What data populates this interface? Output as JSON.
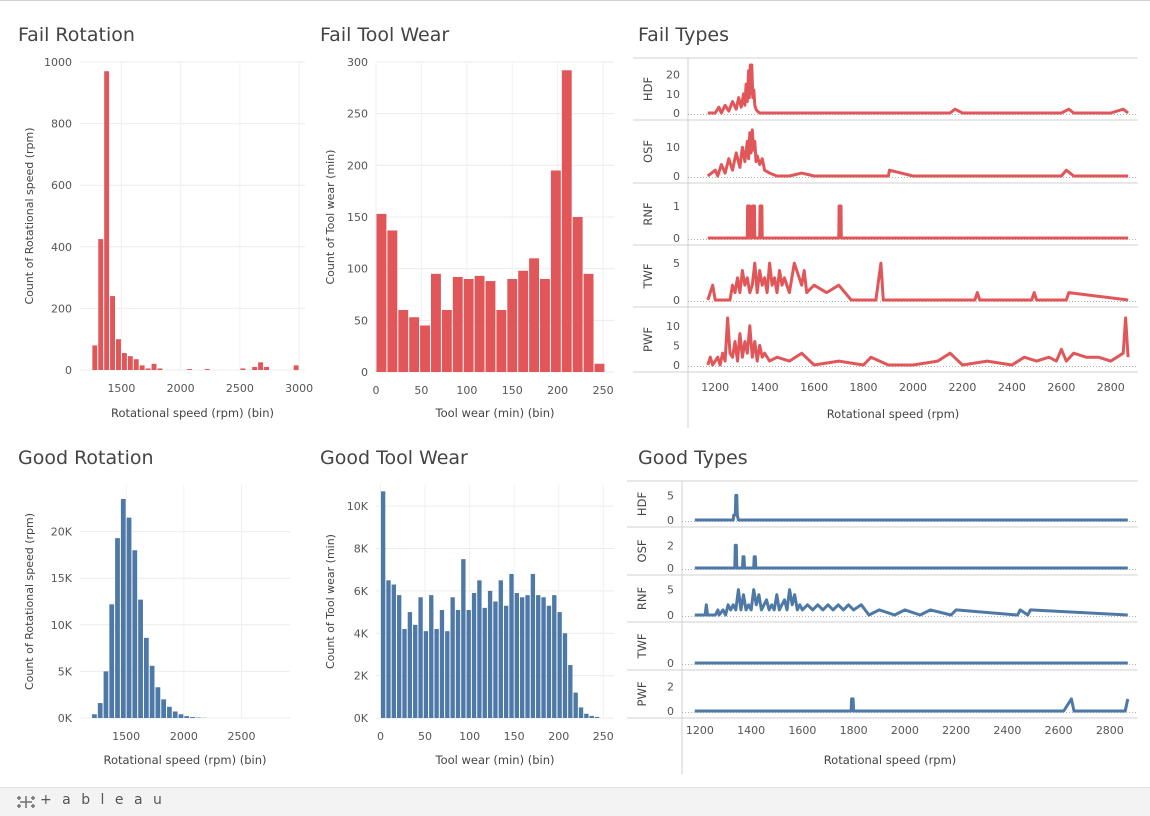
{
  "titles": {
    "fail_rotation": "Fail Rotation",
    "fail_tool_wear": "Fail Tool Wear",
    "fail_types": "Fail Types",
    "good_rotation": "Good Rotation",
    "good_tool_wear": "Good Tool Wear",
    "good_types": "Good Types"
  },
  "footer": {
    "brand": "+ a b l e a u",
    "icon": "tableau-logo-icon"
  },
  "colors": {
    "fail": "#e15759",
    "good": "#4e79a7"
  },
  "chart_data": [
    {
      "id": "fail_rotation",
      "type": "bar",
      "title": "Fail Rotation",
      "xlabel": "Rotational speed (rpm) (bin)",
      "ylabel": "Count of Rotational speed (rpm)",
      "xlim": [
        1150,
        3050
      ],
      "ylim": [
        0,
        1000
      ],
      "xticks": [
        1500,
        2000,
        2500,
        3000
      ],
      "yticks": [
        0,
        200,
        400,
        600,
        800,
        1000
      ],
      "bin_width": 50,
      "bins": [
        1250,
        1300,
        1350,
        1400,
        1450,
        1500,
        1550,
        1600,
        1650,
        1700,
        1750,
        1800,
        2050,
        2200,
        2500,
        2600,
        2650,
        2700,
        2950
      ],
      "values": [
        80,
        425,
        970,
        240,
        100,
        55,
        45,
        35,
        15,
        5,
        20,
        5,
        3,
        3,
        5,
        10,
        25,
        10,
        15
      ]
    },
    {
      "id": "fail_tool_wear",
      "type": "bar",
      "title": "Fail Tool Wear",
      "xlabel": "Tool wear (min) (bin)",
      "ylabel": "Count of Tool wear (min)",
      "xlim": [
        0,
        262
      ],
      "ylim": [
        0,
        300
      ],
      "xticks": [
        0,
        50,
        100,
        150,
        200,
        250
      ],
      "yticks": [
        0,
        50,
        100,
        150,
        200,
        250,
        300
      ],
      "bin_width": 12,
      "bins": [
        0,
        12,
        24,
        36,
        48,
        60,
        72,
        84,
        96,
        108,
        120,
        132,
        144,
        156,
        168,
        180,
        192,
        204,
        216,
        228,
        240
      ],
      "values": [
        153,
        137,
        60,
        53,
        45,
        95,
        60,
        92,
        90,
        93,
        88,
        60,
        90,
        98,
        110,
        90,
        195,
        292,
        150,
        95,
        8
      ]
    },
    {
      "id": "fail_types",
      "type": "line",
      "title": "Fail Types",
      "xlabel": "Rotational speed (rpm)",
      "xlim": [
        1090,
        2910
      ],
      "xticks": [
        1200,
        1400,
        1600,
        1800,
        2000,
        2200,
        2400,
        2600,
        2800
      ],
      "series": [
        {
          "name": "HDF",
          "yticks": [
            0,
            10,
            20
          ],
          "ymax": 25,
          "x": [
            1170,
            1200,
            1215,
            1225,
            1240,
            1255,
            1270,
            1285,
            1295,
            1305,
            1315,
            1320,
            1325,
            1330,
            1335,
            1338,
            1342,
            1345,
            1348,
            1352,
            1356,
            1360,
            1365,
            1370,
            1380,
            1400,
            1500,
            1600,
            1700,
            1800,
            1900,
            2000,
            2150,
            2170,
            2200,
            2300,
            2400,
            2580,
            2600,
            2630,
            2650,
            2700,
            2800,
            2850,
            2870
          ],
          "y": [
            0,
            0,
            3,
            0,
            4,
            1,
            6,
            2,
            8,
            3,
            10,
            4,
            15,
            6,
            22,
            8,
            25,
            10,
            25,
            8,
            12,
            4,
            2,
            1,
            0,
            0,
            0,
            0,
            0,
            0,
            0,
            0,
            0,
            2,
            0,
            0,
            0,
            0,
            0,
            2,
            0,
            0,
            0,
            2,
            0
          ]
        },
        {
          "name": "OSF",
          "yticks": [
            0,
            10
          ],
          "ymax": 17,
          "x": [
            1170,
            1200,
            1210,
            1225,
            1240,
            1255,
            1270,
            1285,
            1300,
            1310,
            1320,
            1330,
            1335,
            1340,
            1345,
            1350,
            1355,
            1360,
            1365,
            1370,
            1380,
            1390,
            1400,
            1420,
            1450,
            1500,
            1550,
            1600,
            1800,
            1900,
            1905,
            2000,
            2200,
            2400,
            2600,
            2620,
            2650,
            2700,
            2870
          ],
          "y": [
            0,
            2,
            0,
            4,
            1,
            6,
            2,
            8,
            3,
            10,
            5,
            12,
            6,
            15,
            8,
            16,
            9,
            12,
            5,
            7,
            4,
            6,
            2,
            1,
            0,
            0,
            1,
            0,
            0,
            0,
            2,
            0,
            0,
            0,
            0,
            2,
            0,
            0,
            0
          ]
        },
        {
          "name": "RNF",
          "yticks": [
            0,
            1
          ],
          "ymax": 1.5,
          "x": [
            1170,
            1330,
            1331,
            1339,
            1340,
            1350,
            1351,
            1359,
            1360,
            1380,
            1381,
            1389,
            1390,
            1700,
            1701,
            1709,
            1710,
            2870
          ],
          "y": [
            0,
            0,
            1,
            1,
            0,
            0,
            1,
            1,
            0,
            0,
            1,
            1,
            0,
            0,
            1,
            1,
            0,
            0
          ]
        },
        {
          "name": "TWF",
          "yticks": [
            0,
            5
          ],
          "ymax": 6.5,
          "x": [
            1170,
            1190,
            1200,
            1260,
            1270,
            1280,
            1290,
            1300,
            1310,
            1320,
            1330,
            1340,
            1350,
            1360,
            1370,
            1380,
            1390,
            1400,
            1410,
            1420,
            1430,
            1440,
            1450,
            1460,
            1470,
            1480,
            1500,
            1520,
            1550,
            1560,
            1570,
            1600,
            1650,
            1700,
            1750,
            1850,
            1870,
            1880,
            1900,
            2000,
            2250,
            2260,
            2270,
            2480,
            2490,
            2500,
            2620,
            2630,
            2870
          ],
          "y": [
            0,
            2,
            0,
            0,
            2,
            1,
            3,
            1,
            4,
            2,
            3,
            1,
            2,
            5,
            1,
            4,
            2,
            3,
            1,
            5,
            2,
            3,
            1,
            4,
            2,
            3,
            1,
            5,
            2,
            4,
            1,
            2,
            1,
            2,
            0,
            0,
            5,
            0,
            0,
            0,
            0,
            1,
            0,
            0,
            1,
            0,
            0,
            1,
            0
          ]
        },
        {
          "name": "PWF",
          "yticks": [
            0,
            5,
            10
          ],
          "ymax": 13,
          "x": [
            1170,
            1180,
            1190,
            1200,
            1210,
            1220,
            1230,
            1240,
            1250,
            1260,
            1270,
            1280,
            1290,
            1300,
            1310,
            1320,
            1330,
            1340,
            1350,
            1360,
            1370,
            1380,
            1390,
            1400,
            1420,
            1450,
            1500,
            1550,
            1600,
            1700,
            1800,
            1830,
            1900,
            2000,
            2100,
            2150,
            2200,
            2300,
            2400,
            2450,
            2500,
            2550,
            2580,
            2600,
            2620,
            2650,
            2700,
            2750,
            2800,
            2850,
            2860,
            2870
          ],
          "y": [
            0,
            2,
            0,
            1,
            2,
            0,
            3,
            1,
            12,
            3,
            2,
            6,
            1,
            8,
            2,
            6,
            3,
            10,
            2,
            6,
            1,
            5,
            2,
            3,
            1,
            2,
            1,
            3,
            0,
            1,
            0,
            2,
            0,
            0,
            1,
            3,
            0,
            1,
            0,
            2,
            1,
            2,
            1,
            4,
            1,
            3,
            2,
            2,
            1,
            3,
            12,
            2
          ]
        }
      ]
    },
    {
      "id": "good_rotation",
      "type": "bar",
      "title": "Good Rotation",
      "xlabel": "Rotational speed (rpm) (bin)",
      "ylabel": "Count of Rotational speed (rpm)",
      "xlim": [
        1100,
        2920
      ],
      "ylim": [
        0,
        25000
      ],
      "xticks": [
        1500,
        2000,
        2500
      ],
      "yticks": [
        0,
        5000,
        10000,
        15000,
        20000
      ],
      "ytick_labels": [
        "0K",
        "5K",
        "10K",
        "15K",
        "20K"
      ],
      "bin_width": 50,
      "bins": [
        1200,
        1250,
        1300,
        1350,
        1400,
        1450,
        1500,
        1550,
        1600,
        1650,
        1700,
        1750,
        1800,
        1850,
        1900,
        1950,
        2000,
        2050,
        2100,
        2150
      ],
      "values": [
        400,
        1600,
        5000,
        12200,
        19300,
        23500,
        21500,
        18000,
        12700,
        8600,
        5600,
        3300,
        2000,
        1200,
        700,
        400,
        200,
        100,
        50,
        20
      ]
    },
    {
      "id": "good_tool_wear",
      "type": "bar",
      "title": "Good Tool Wear",
      "xlabel": "Tool wear (min) (bin)",
      "ylabel": "Count of Tool wear (min)",
      "xlim": [
        -5,
        262
      ],
      "ylim": [
        0,
        11000
      ],
      "xticks": [
        0,
        50,
        100,
        150,
        200,
        250
      ],
      "yticks": [
        0,
        2000,
        4000,
        6000,
        8000,
        10000
      ],
      "ytick_labels": [
        "0K",
        "2K",
        "4K",
        "6K",
        "8K",
        "10K"
      ],
      "bin_width": 6,
      "bins": [
        0,
        6,
        12,
        18,
        24,
        30,
        36,
        42,
        48,
        54,
        60,
        66,
        72,
        78,
        84,
        90,
        96,
        102,
        108,
        114,
        120,
        126,
        132,
        138,
        144,
        150,
        156,
        162,
        168,
        174,
        180,
        186,
        192,
        198,
        204,
        210,
        216,
        222,
        228,
        234,
        240
      ],
      "values": [
        10700,
        6500,
        6300,
        5800,
        4200,
        5000,
        4400,
        5700,
        4100,
        5800,
        4200,
        5100,
        4100,
        5700,
        5100,
        7500,
        5100,
        5900,
        6500,
        5200,
        6000,
        5500,
        6500,
        5300,
        6800,
        5900,
        5700,
        5800,
        6800,
        5800,
        5700,
        5300,
        5800,
        5000,
        4000,
        2500,
        1200,
        500,
        200,
        100,
        50
      ]
    },
    {
      "id": "good_types",
      "type": "line",
      "title": "Good Types",
      "xlabel": "Rotational speed (rpm)",
      "xlim": [
        1130,
        2910
      ],
      "xticks": [
        1200,
        1400,
        1600,
        1800,
        2000,
        2200,
        2400,
        2600,
        2800
      ],
      "series": [
        {
          "name": "HDF",
          "yticks": [
            0,
            5
          ],
          "ymax": 6.5,
          "x": [
            1180,
            1330,
            1332,
            1338,
            1340,
            1344,
            1346,
            1350,
            2870
          ],
          "y": [
            0,
            0,
            1,
            1,
            5,
            5,
            1,
            0,
            0
          ]
        },
        {
          "name": "OSF",
          "yticks": [
            0,
            2
          ],
          "ymax": 3,
          "x": [
            1180,
            1336,
            1338,
            1342,
            1344,
            1366,
            1368,
            1372,
            1374,
            1410,
            1412,
            1416,
            1418,
            2870
          ],
          "y": [
            0,
            0,
            2,
            2,
            0,
            0,
            1,
            1,
            0,
            0,
            1,
            1,
            0,
            0
          ]
        },
        {
          "name": "RNF",
          "yticks": [
            0,
            5
          ],
          "ymax": 6.5,
          "x": [
            1180,
            1220,
            1225,
            1230,
            1260,
            1270,
            1275,
            1290,
            1300,
            1310,
            1320,
            1330,
            1340,
            1350,
            1360,
            1370,
            1380,
            1390,
            1400,
            1410,
            1420,
            1430,
            1440,
            1450,
            1460,
            1470,
            1480,
            1490,
            1500,
            1510,
            1520,
            1530,
            1540,
            1550,
            1560,
            1570,
            1580,
            1590,
            1600,
            1620,
            1640,
            1660,
            1680,
            1700,
            1720,
            1740,
            1760,
            1780,
            1800,
            1830,
            1860,
            1900,
            1960,
            2000,
            2060,
            2100,
            2180,
            2200,
            2440,
            2450,
            2480,
            2490,
            2870
          ],
          "y": [
            0,
            0,
            2,
            0,
            0,
            1,
            0,
            1,
            0,
            2,
            1,
            2,
            1,
            5,
            1,
            4,
            1,
            2,
            1,
            5,
            2,
            4,
            1,
            2,
            3,
            1,
            2,
            1,
            4,
            1,
            2,
            3,
            1,
            5,
            2,
            4,
            1,
            2,
            1,
            2,
            1,
            2,
            1,
            2,
            1,
            2,
            1,
            2,
            1,
            2,
            0,
            1,
            0,
            1,
            0,
            1,
            0,
            1,
            0,
            1,
            0,
            1,
            0
          ]
        },
        {
          "name": "TWF",
          "yticks": [
            0
          ],
          "ymax": 1,
          "x": [
            1180,
            2870
          ],
          "y": [
            0,
            0
          ]
        },
        {
          "name": "PWF",
          "yticks": [
            0,
            2
          ],
          "ymax": 2.8,
          "x": [
            1180,
            1790,
            1792,
            1798,
            1800,
            2620,
            2650,
            2660,
            2860,
            2870
          ],
          "y": [
            0,
            0,
            1,
            1,
            0,
            0,
            1,
            0,
            0,
            1
          ]
        }
      ]
    }
  ]
}
